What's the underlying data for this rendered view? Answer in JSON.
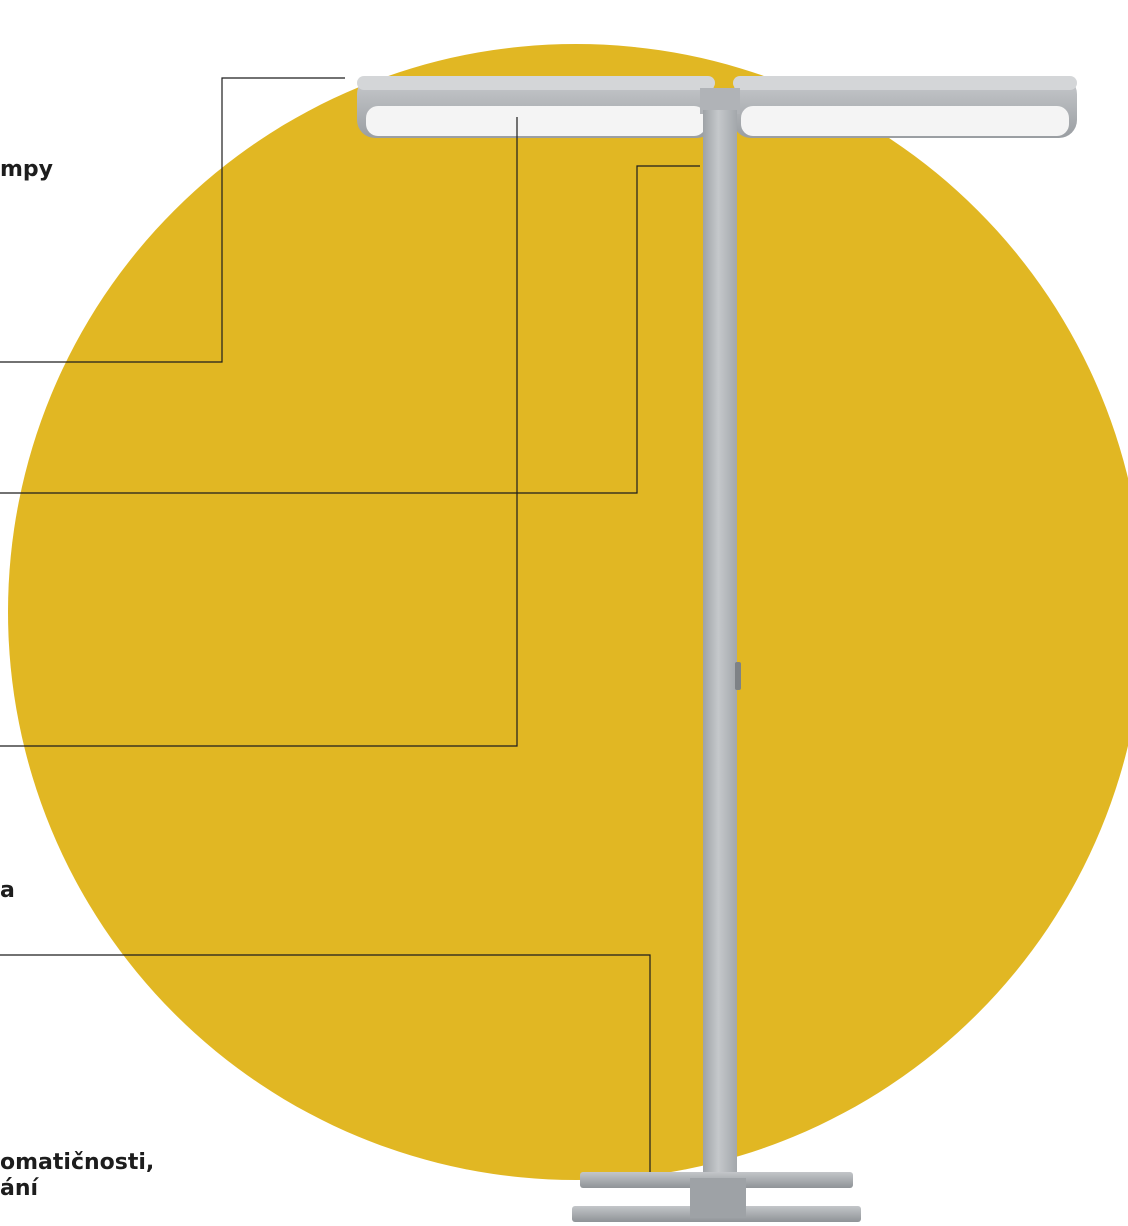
{
  "callouts": {
    "top": "mpy",
    "mid": "a",
    "bottom_line1": "omatičnosti,",
    "bottom_line2": "ání"
  },
  "colors": {
    "circle": "#E1B723",
    "lamp_body": "#B3B6BA",
    "diffuser": "#F2F2F2",
    "leader_line": "#1d1d1d",
    "text": "#1d1d1d"
  }
}
